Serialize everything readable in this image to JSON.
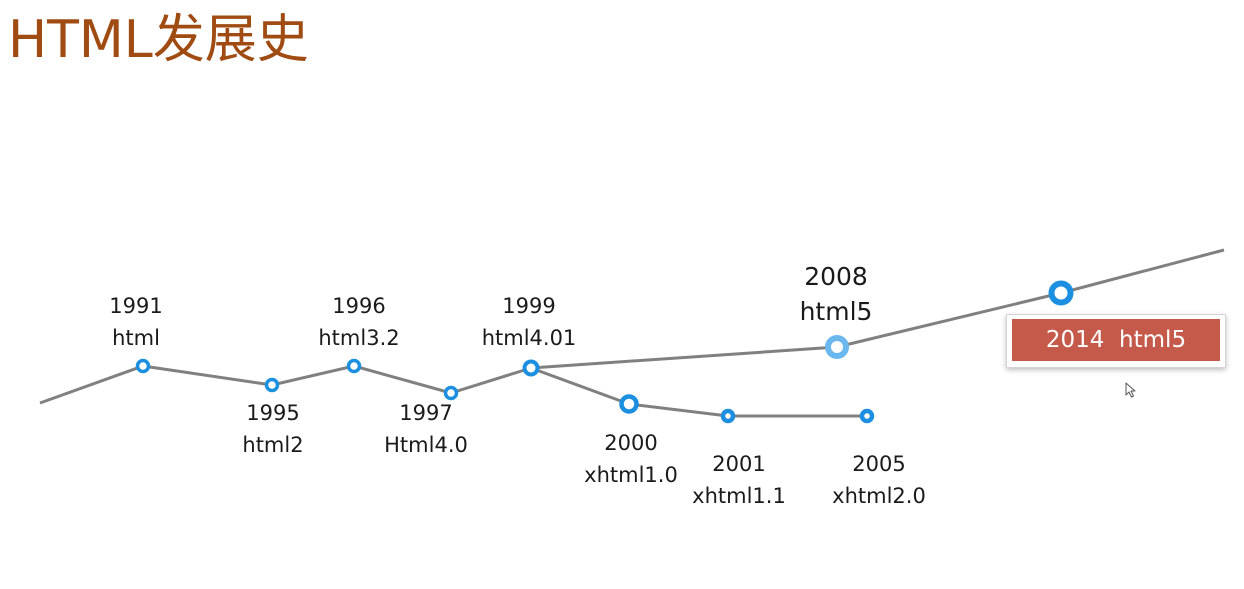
{
  "title": "HTML发展史",
  "milestones": [
    {
      "year": "1991",
      "name": "html"
    },
    {
      "year": "1995",
      "name": "html2"
    },
    {
      "year": "1996",
      "name": "html3.2"
    },
    {
      "year": "1997",
      "name": "Html4.0"
    },
    {
      "year": "1999",
      "name": "html4.01"
    },
    {
      "year": "2000",
      "name": "xhtml1.0"
    },
    {
      "year": "2001",
      "name": "xhtml1.1"
    },
    {
      "year": "2005",
      "name": "xhtml2.0"
    },
    {
      "year": "2008",
      "name": "html5"
    }
  ],
  "callout": {
    "label": "2014  html5"
  },
  "colors": {
    "title": "#a04b12",
    "line": "#808080",
    "node": "#1d8fe0",
    "node_highlight": "#6ab8ee",
    "callout_bg": "#c55a4b",
    "callout_text": "#ffffff"
  },
  "icons": {
    "cursor": "mouse-pointer-icon"
  }
}
